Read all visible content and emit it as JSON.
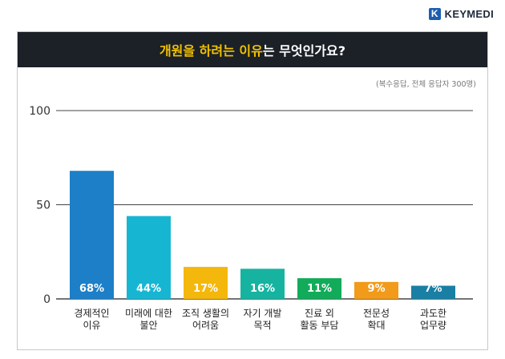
{
  "brand": {
    "logo_letter": "K",
    "name": "KEYMEDI"
  },
  "title": {
    "highlight": "개원을 하려는 이유",
    "rest": "는 무엇인가요?"
  },
  "subtitle": "(복수응답, 전체 응답자 300명)",
  "colors": {
    "title_bg": "#1c2128",
    "highlight": "#f2c200",
    "brand": "#1c5db0"
  },
  "chart_data": {
    "type": "bar",
    "title": "개원을 하려는 이유는 무엇인가요?",
    "ylim": [
      0,
      100
    ],
    "yticks": [
      0,
      50,
      100
    ],
    "grid": true,
    "categories": [
      [
        "경제적인",
        "이유"
      ],
      [
        "미래에 대한",
        "불안"
      ],
      [
        "조직 생활의",
        "어려움"
      ],
      [
        "자기 개발",
        "목적"
      ],
      [
        "진료 외",
        "활동 부담"
      ],
      [
        "전문성",
        "확대"
      ],
      [
        "과도한",
        "업무량"
      ]
    ],
    "values": [
      68,
      44,
      17,
      16,
      11,
      9,
      7
    ],
    "value_labels": [
      "68%",
      "44%",
      "17%",
      "16%",
      "11%",
      "9%",
      "7%"
    ],
    "bar_colors": [
      "#1c7fc7",
      "#16b6d3",
      "#f4b70c",
      "#15b3a0",
      "#12ab5a",
      "#f29a1a",
      "#1a7fa4"
    ]
  }
}
